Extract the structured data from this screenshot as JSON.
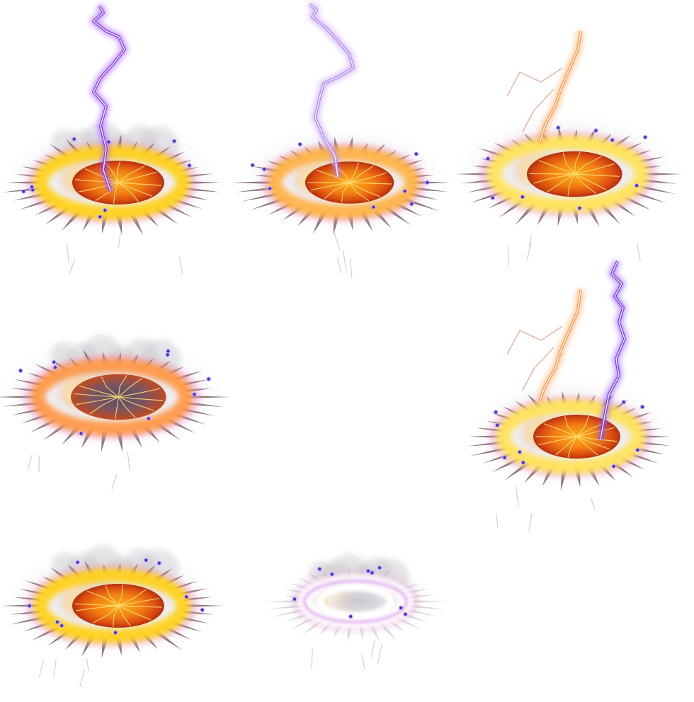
{
  "sprite_sheet": {
    "columns": 3,
    "rows": 3,
    "frames": [
      {
        "id": "1",
        "empty": false,
        "ring_color": "#ffd21a",
        "bolt": "violet",
        "core": "molten",
        "smoke": "grey"
      },
      {
        "id": "2",
        "empty": false,
        "ring_color": "#ffb347",
        "bolt": "violet",
        "core": "molten",
        "smoke": "light"
      },
      {
        "id": "3",
        "empty": false,
        "ring_color": "#ffe35a",
        "bolt": "orange",
        "core": "molten",
        "smoke": "light"
      },
      {
        "id": "4",
        "empty": false,
        "ring_color": "#ff9a4a",
        "bolt": "none",
        "core": "dark",
        "smoke": "grey"
      },
      {
        "id": "5",
        "empty": true
      },
      {
        "id": "6",
        "empty": false,
        "ring_color": "#ffe35a",
        "bolt": "orange+violet",
        "core": "molten",
        "smoke": "light"
      },
      {
        "id": "7",
        "empty": false,
        "ring_color": "#ffd21a",
        "bolt": "none",
        "core": "molten",
        "smoke": "grey"
      },
      {
        "id": "8",
        "empty": false,
        "ring_color": "#ffffff",
        "bolt": "none",
        "core": "fading",
        "smoke": "grey"
      },
      {
        "id": "9",
        "empty": true
      }
    ]
  }
}
